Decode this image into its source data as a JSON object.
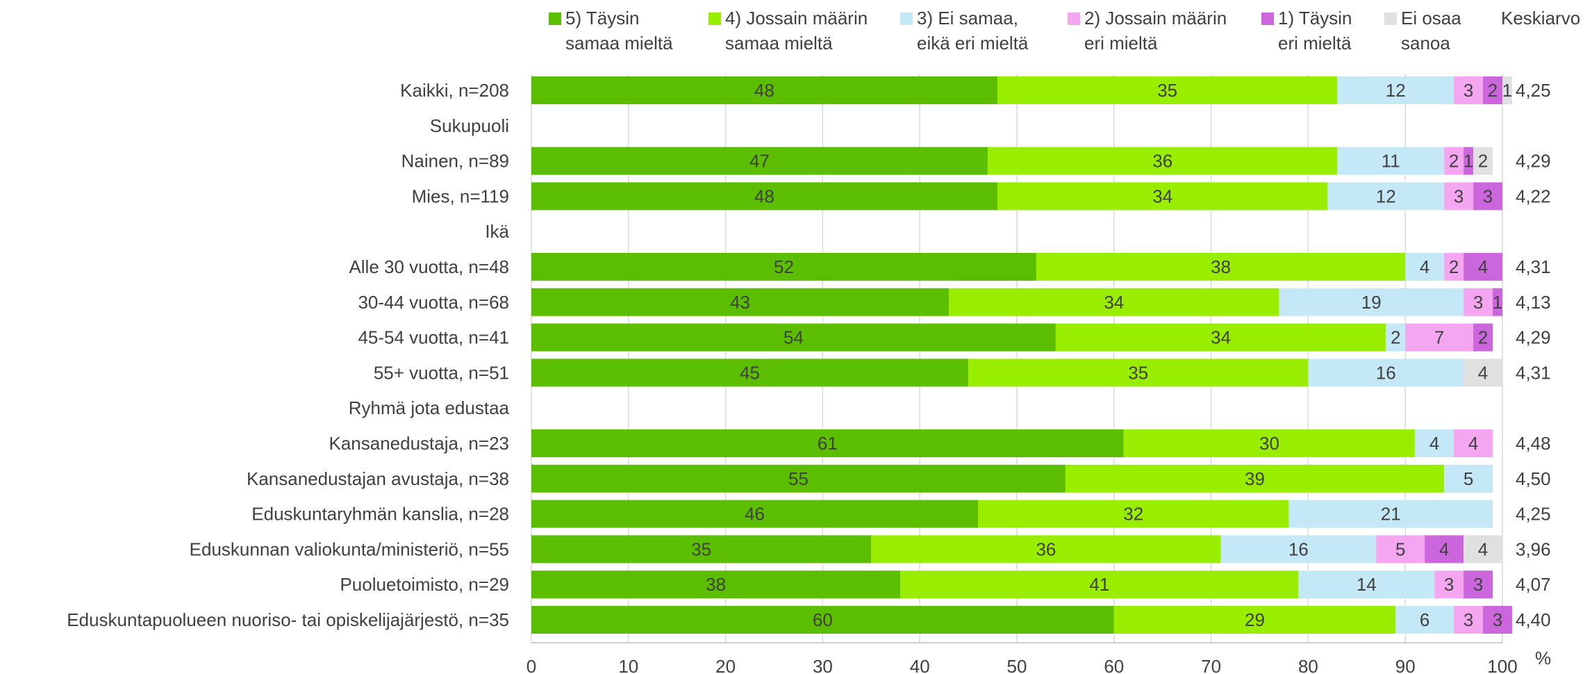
{
  "chart_data": {
    "type": "bar",
    "orientation": "horizontal",
    "stacked": true,
    "xlim": [
      0,
      100
    ],
    "xticks": [
      0,
      10,
      20,
      30,
      40,
      50,
      60,
      70,
      80,
      90,
      100
    ],
    "unit": "%",
    "grid": true,
    "legend_position": "top",
    "average_header": "Keskiarvo",
    "series": [
      {
        "name": "5) Täysin\nsamaa mieltä",
        "color": "#5bbf00"
      },
      {
        "name": "4) Jossain määrin\nsamaa mieltä",
        "color": "#99ee00"
      },
      {
        "name": "3) Ei samaa,\neikä eri mieltä",
        "color": "#c5e8f7"
      },
      {
        "name": "2) Jossain määrin\neri mieltä",
        "color": "#f4a6f0"
      },
      {
        "name": "1) Täysin\neri mieltä",
        "color": "#cc66dd"
      },
      {
        "name": "Ei osaa\nsanoa",
        "color": "#e0e0e0"
      }
    ],
    "rows": [
      {
        "label": "Kaikki, n=208",
        "values": [
          48,
          35,
          12,
          3,
          2,
          1
        ],
        "average": "4,25"
      },
      {
        "label": "Sukupuoli",
        "header": true
      },
      {
        "label": "Nainen, n=89",
        "values": [
          47,
          36,
          11,
          2,
          1,
          2
        ],
        "average": "4,29"
      },
      {
        "label": "Mies, n=119",
        "values": [
          48,
          34,
          12,
          3,
          3,
          0
        ],
        "average": "4,22"
      },
      {
        "label": "Ikä",
        "header": true
      },
      {
        "label": "Alle 30 vuotta, n=48",
        "values": [
          52,
          38,
          4,
          2,
          4,
          0
        ],
        "average": "4,31"
      },
      {
        "label": "30-44 vuotta, n=68",
        "values": [
          43,
          34,
          19,
          3,
          1,
          0
        ],
        "average": "4,13"
      },
      {
        "label": "45-54 vuotta, n=41",
        "values": [
          54,
          34,
          2,
          7,
          2,
          0
        ],
        "average": "4,29"
      },
      {
        "label": "55+ vuotta, n=51",
        "values": [
          45,
          35,
          16,
          0,
          0,
          4
        ],
        "average": "4,31"
      },
      {
        "label": "Ryhmä jota edustaa",
        "header": true
      },
      {
        "label": "Kansanedustaja, n=23",
        "values": [
          61,
          30,
          4,
          4,
          0,
          0
        ],
        "average": "4,48"
      },
      {
        "label": "Kansanedustajan avustaja, n=38",
        "values": [
          55,
          39,
          5,
          0,
          0,
          0
        ],
        "average": "4,50"
      },
      {
        "label": "Eduskuntaryhmän kanslia, n=28",
        "values": [
          46,
          32,
          21,
          0,
          0,
          0
        ],
        "average": "4,25"
      },
      {
        "label": "Eduskunnan valiokunta/ministeriö, n=55",
        "values": [
          35,
          36,
          16,
          5,
          4,
          4
        ],
        "average": "3,96"
      },
      {
        "label": "Puoluetoimisto, n=29",
        "values": [
          38,
          41,
          14,
          3,
          3,
          0
        ],
        "average": "4,07"
      },
      {
        "label": "Eduskuntapuolueen nuoriso- tai opiskelijajärjestö, n=35",
        "values": [
          60,
          29,
          6,
          3,
          3,
          0
        ],
        "average": "4,40"
      }
    ]
  }
}
